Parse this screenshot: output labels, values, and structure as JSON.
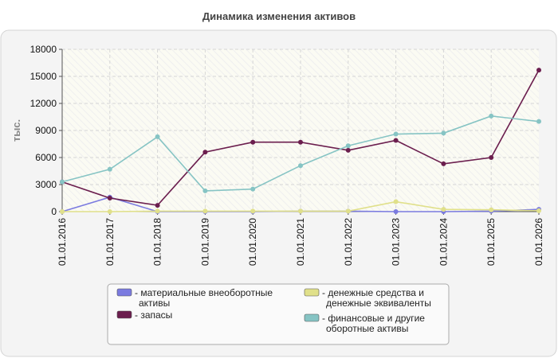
{
  "chart_data": {
    "type": "line",
    "title": "Динамика изменения активов",
    "ylabel": "тыс.",
    "xlabel": "",
    "ylim": [
      0,
      18000
    ],
    "yticks": [
      0,
      3000,
      6000,
      9000,
      12000,
      15000,
      18000
    ],
    "grid": true,
    "legend_position": "bottom",
    "categories": [
      "01.01.2016",
      "01.01.2017",
      "01.01.2018",
      "01.01.2019",
      "01.01.2020",
      "01.01.2021",
      "01.01.2022",
      "01.01.2023",
      "01.01.2024",
      "01.01.2025",
      "01.01.2026"
    ],
    "series": [
      {
        "name": "материальные внеоборотные активы",
        "color": "#7b7be0",
        "values": [
          0,
          1600,
          0,
          0,
          0,
          50,
          50,
          0,
          0,
          50,
          250
        ]
      },
      {
        "name": "запасы",
        "color": "#6b1e4e",
        "values": [
          3300,
          1500,
          700,
          6600,
          7700,
          7700,
          6800,
          7900,
          5300,
          6000,
          15700
        ]
      },
      {
        "name": "денежные средства и денежные эквиваленты",
        "color": "#e0e08a",
        "values": [
          0,
          0,
          50,
          50,
          50,
          50,
          50,
          1100,
          250,
          200,
          100
        ]
      },
      {
        "name": "финансовые и другие оборотные активы",
        "color": "#86c4c4",
        "values": [
          3300,
          4700,
          8300,
          2300,
          2500,
          5100,
          7300,
          8600,
          8700,
          10600,
          10000
        ]
      }
    ]
  }
}
